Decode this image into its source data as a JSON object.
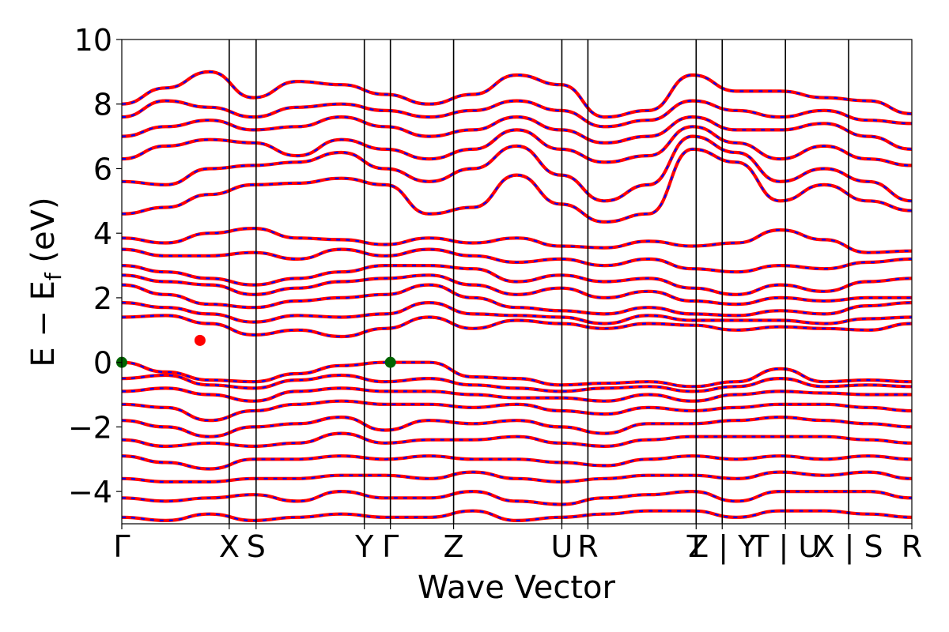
{
  "chart_data": {
    "type": "line",
    "xlabel": "Wave Vector",
    "ylabel_parts": {
      "main": "E − E",
      "sub": "f",
      "unit": " (eV)"
    },
    "ylim": [
      -5,
      10
    ],
    "y_ticks": [
      {
        "value": -4,
        "label": "−4"
      },
      {
        "value": -2,
        "label": "−2"
      },
      {
        "value": 0,
        "label": "0"
      },
      {
        "value": 2,
        "label": "2"
      },
      {
        "value": 4,
        "label": "4"
      },
      {
        "value": 6,
        "label": "6"
      },
      {
        "value": 8,
        "label": "8"
      },
      {
        "value": 10,
        "label": "10"
      }
    ],
    "kpath_labels": [
      "Γ",
      "X",
      "S",
      "Y",
      "Γ",
      "Z",
      "U",
      "R",
      "T",
      "Z | Y",
      "T | U",
      "X | S",
      "R"
    ],
    "kpath_positions": [
      0,
      0.136,
      0.17,
      0.307,
      0.34,
      0.42,
      0.557,
      0.59,
      0.727,
      0.76,
      0.84,
      0.92,
      1.0
    ],
    "line_colors": {
      "series_a": "#ff0000",
      "series_b": "#0000ff"
    },
    "markers": [
      {
        "name": "vbm",
        "x": 0.0,
        "y": 0.0,
        "color": "#006400"
      },
      {
        "name": "vbm",
        "x": 0.34,
        "y": 0.0,
        "color": "#006400"
      },
      {
        "name": "cbm",
        "x": 0.099,
        "y": 0.68,
        "color": "#ff0000"
      }
    ],
    "bands_conduction": [
      [
        1.4,
        1.45,
        1.2,
        0.85,
        1.0,
        0.8,
        1.05,
        1.4,
        1.05,
        1.3,
        1.2,
        1.05,
        1.2,
        1.15,
        1.0,
        1.1,
        1.05,
        1.0,
        1.2
      ],
      [
        1.85,
        1.7,
        1.5,
        1.25,
        1.45,
        1.4,
        1.5,
        1.85,
        1.5,
        1.45,
        1.4,
        1.2,
        1.45,
        1.3,
        1.3,
        1.3,
        1.2,
        1.35,
        1.4
      ],
      [
        2.4,
        2.1,
        1.8,
        1.7,
        1.9,
        2.0,
        2.1,
        2.4,
        2.0,
        1.7,
        1.6,
        1.5,
        1.7,
        1.5,
        1.45,
        1.6,
        1.5,
        1.75,
        1.85
      ],
      [
        2.7,
        2.5,
        2.4,
        2.1,
        2.3,
        2.5,
        2.6,
        2.7,
        2.4,
        2.1,
        2.3,
        2.0,
        2.2,
        1.9,
        1.8,
        2.0,
        1.9,
        2.0,
        2.0
      ],
      [
        3.0,
        2.8,
        2.6,
        2.4,
        2.6,
        2.8,
        3.0,
        3.0,
        2.9,
        2.5,
        2.7,
        2.5,
        2.6,
        2.3,
        2.1,
        2.4,
        2.2,
        2.5,
        2.6
      ],
      [
        3.5,
        3.3,
        3.3,
        3.4,
        3.2,
        3.5,
        3.3,
        3.5,
        3.3,
        3.1,
        3.2,
        3.0,
        3.2,
        2.9,
        2.8,
        3.0,
        2.9,
        3.1,
        3.2
      ],
      [
        3.85,
        3.7,
        4.0,
        4.15,
        3.85,
        3.8,
        3.65,
        3.85,
        3.7,
        3.85,
        3.6,
        3.55,
        3.75,
        3.6,
        3.7,
        4.1,
        3.8,
        3.4,
        3.45
      ],
      [
        4.6,
        4.8,
        5.2,
        5.5,
        5.55,
        5.7,
        5.5,
        4.6,
        4.8,
        5.8,
        4.9,
        4.35,
        4.6,
        6.6,
        6.2,
        5.0,
        5.5,
        5.0,
        4.7
      ],
      [
        5.6,
        5.5,
        6.0,
        6.1,
        6.2,
        6.5,
        6.0,
        5.6,
        6.0,
        6.7,
        5.8,
        5.0,
        5.5,
        7.0,
        6.5,
        5.6,
        6.0,
        5.6,
        5.0
      ],
      [
        6.3,
        6.7,
        6.9,
        6.8,
        6.4,
        6.9,
        6.6,
        6.3,
        6.6,
        7.2,
        6.6,
        6.2,
        6.4,
        7.3,
        6.8,
        6.3,
        6.7,
        6.3,
        6.1
      ],
      [
        7.0,
        7.3,
        7.5,
        7.2,
        7.3,
        7.6,
        7.3,
        7.0,
        7.2,
        7.6,
        7.2,
        6.8,
        7.0,
        7.6,
        7.2,
        7.2,
        7.4,
        7.0,
        6.6
      ],
      [
        7.6,
        8.1,
        7.9,
        7.6,
        7.9,
        8.0,
        7.8,
        7.6,
        7.8,
        8.1,
        7.8,
        7.3,
        7.5,
        8.1,
        7.8,
        7.6,
        7.8,
        7.5,
        7.4
      ],
      [
        8.0,
        8.5,
        9.0,
        8.2,
        8.7,
        8.6,
        8.3,
        8.0,
        8.3,
        8.9,
        8.6,
        7.6,
        7.8,
        8.9,
        8.4,
        8.4,
        8.2,
        8.1,
        7.7
      ]
    ],
    "bands_valence": [
      [
        0.0,
        -0.3,
        -0.55,
        -0.6,
        -0.35,
        -0.1,
        0.0,
        0.0,
        -0.45,
        -0.5,
        -0.7,
        -0.65,
        -0.6,
        -0.75,
        -0.6,
        -0.2,
        -0.6,
        -0.55,
        -0.6
      ],
      [
        -0.5,
        -0.4,
        -0.7,
        -0.8,
        -0.55,
        -0.4,
        -0.6,
        -0.5,
        -0.7,
        -0.8,
        -0.9,
        -0.8,
        -0.75,
        -0.9,
        -0.75,
        -0.5,
        -0.75,
        -0.7,
        -0.75
      ],
      [
        -0.9,
        -0.8,
        -1.0,
        -1.2,
        -0.9,
        -0.8,
        -0.9,
        -0.9,
        -1.0,
        -1.1,
        -1.1,
        -1.2,
        -1.0,
        -1.2,
        -1.0,
        -0.9,
        -0.95,
        -1.0,
        -1.0
      ],
      [
        -1.3,
        -1.4,
        -1.8,
        -1.5,
        -1.3,
        -1.2,
        -1.3,
        -1.3,
        -1.4,
        -1.3,
        -1.5,
        -1.6,
        -1.4,
        -1.5,
        -1.4,
        -1.3,
        -1.3,
        -1.4,
        -1.5
      ],
      [
        -1.8,
        -2.0,
        -2.3,
        -2.0,
        -1.9,
        -1.7,
        -2.1,
        -1.8,
        -1.9,
        -1.8,
        -2.0,
        -2.2,
        -1.9,
        -1.9,
        -1.8,
        -1.7,
        -1.8,
        -1.9,
        -2.0
      ],
      [
        -2.4,
        -2.6,
        -2.5,
        -2.6,
        -2.5,
        -2.2,
        -2.5,
        -2.4,
        -2.4,
        -2.3,
        -2.5,
        -2.6,
        -2.4,
        -2.3,
        -2.3,
        -2.3,
        -2.3,
        -2.4,
        -2.5
      ],
      [
        -2.9,
        -3.1,
        -3.3,
        -3.0,
        -3.0,
        -2.9,
        -3.0,
        -2.9,
        -3.0,
        -3.0,
        -3.1,
        -3.2,
        -3.0,
        -2.9,
        -3.0,
        -2.9,
        -3.0,
        -2.9,
        -3.0
      ],
      [
        -3.6,
        -3.7,
        -3.7,
        -3.6,
        -3.6,
        -3.5,
        -3.5,
        -3.6,
        -3.4,
        -3.6,
        -3.7,
        -3.6,
        -3.5,
        -3.5,
        -3.6,
        -3.4,
        -3.5,
        -3.4,
        -3.6
      ],
      [
        -4.2,
        -4.3,
        -4.2,
        -4.1,
        -4.3,
        -4.0,
        -4.2,
        -4.2,
        -4.0,
        -4.3,
        -4.4,
        -4.2,
        -4.1,
        -4.0,
        -4.3,
        -4.0,
        -4.0,
        -4.0,
        -4.2
      ],
      [
        -4.8,
        -4.9,
        -4.7,
        -4.9,
        -4.8,
        -4.7,
        -4.8,
        -4.8,
        -4.6,
        -4.9,
        -4.8,
        -4.7,
        -4.6,
        -4.6,
        -4.8,
        -4.6,
        -4.6,
        -4.7,
        -4.8
      ]
    ]
  }
}
